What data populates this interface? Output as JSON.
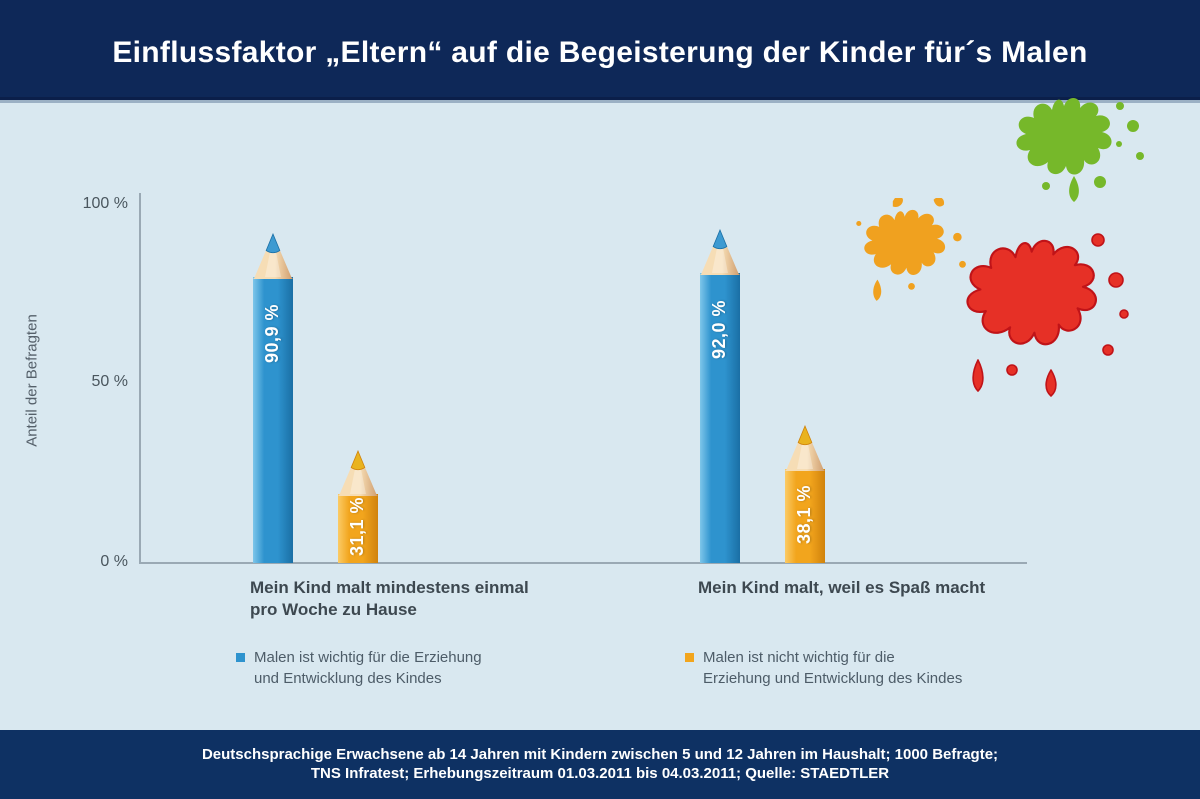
{
  "header": {
    "title": "Einflussfaktor „Eltern“ auf die Begeisterung der Kinder für´s Malen"
  },
  "chart_data": {
    "type": "bar",
    "bar_style": "pencil",
    "title": "Einflussfaktor „Eltern“ auf die Begeisterung der Kinder für´s Malen",
    "xlabel": "",
    "ylabel": "Anteil der Befragten",
    "ylim": [
      0,
      100
    ],
    "yticks": [
      100,
      50,
      0
    ],
    "ytick_labels": [
      "100 %",
      "50 %",
      "0 %"
    ],
    "grid": false,
    "legend_position": "bottom",
    "categories": [
      "Mein Kind malt mindestens einmal pro Woche zu Hause",
      "Mein Kind malt, weil es Spaß macht"
    ],
    "category_lines": [
      [
        "Mein Kind malt mindestens einmal",
        "pro Woche zu Hause"
      ],
      [
        "Mein Kind malt, weil es Spaß macht"
      ]
    ],
    "series": [
      {
        "name": "Malen ist wichtig für die Erziehung und Entwicklung des Kindes",
        "name_lines": [
          "Malen ist wichtig für die Erziehung",
          "und Entwicklung des Kindes"
        ],
        "values": [
          90.9,
          92.0
        ],
        "labels": [
          "90,9 %",
          "92,0 %"
        ],
        "colors": {
          "light": "#7EC6EA",
          "main": "#2E93CE",
          "dark": "#1A6FA5",
          "lead": "#3D9AD1"
        }
      },
      {
        "name": "Malen ist nicht wichtig für die Erziehung und Entwicklung des Kindes",
        "name_lines": [
          "Malen ist nicht wichtig für die",
          "Erziehung und Entwicklung des Kindes"
        ],
        "values": [
          31.1,
          38.1
        ],
        "labels": [
          "31,1 %",
          "38,1 %"
        ],
        "colors": {
          "light": "#FBCB66",
          "main": "#F2A51D",
          "dark": "#D0820C",
          "lead": "#E9B31F"
        }
      }
    ]
  },
  "footer": {
    "line1": "Deutschsprachige Erwachsene ab 14 Jahren mit Kindern zwischen 5 und 12 Jahren im Haushalt; 1000 Befragte;",
    "line2": "TNS Infratest; Erhebungszeitraum 01.03.2011 bis 04.03.2011; Quelle: STAEDTLER"
  },
  "colors": {
    "header_bg": "#0E2858",
    "footer_bg": "#0E3163",
    "panel_bg": "#D9E8F0",
    "axis": "#9AA9B4",
    "tick_text": "#4A565E",
    "category_text": "#3D4850",
    "legend_text": "#4D5C68",
    "title_text": "#FFFFFF",
    "wood_light": "#F6DDB5",
    "wood_dark": "#CE9B6B",
    "splat_green": "#76B82A",
    "splat_orange": "#F0A11F",
    "splat_red": "#E63026",
    "splat_red_outline": "#C01318"
  }
}
